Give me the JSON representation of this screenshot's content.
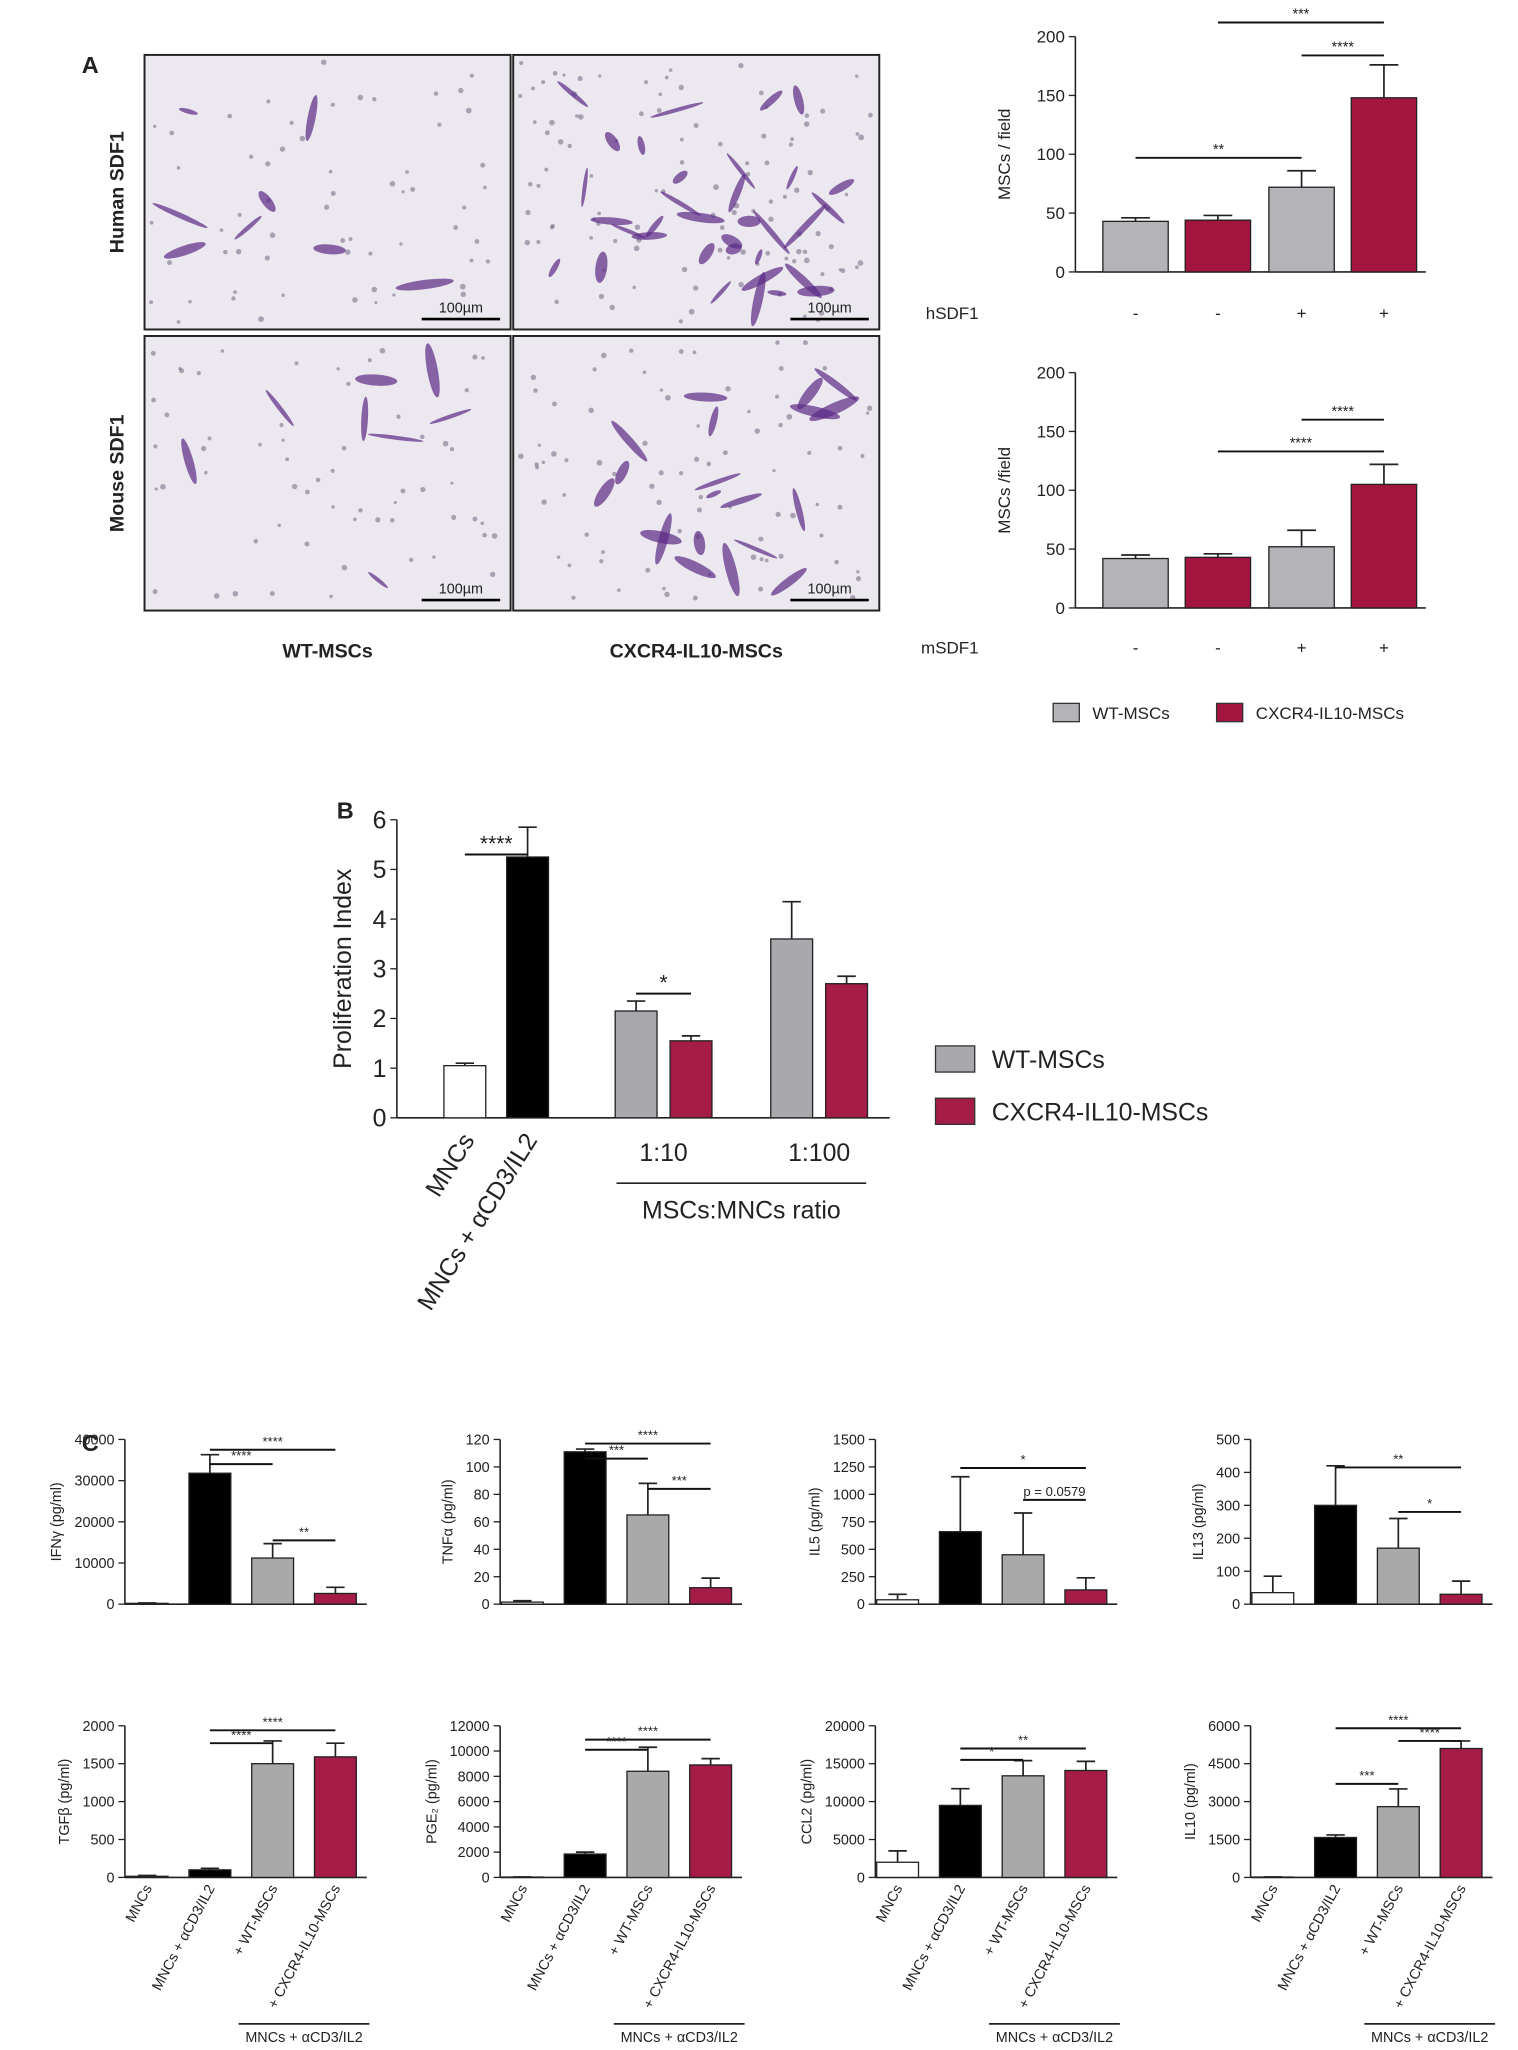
{
  "panels": [
    "A",
    "B",
    "C"
  ],
  "micrographs": {
    "rows": [
      "Human SDF1",
      "Mouse SDF1"
    ],
    "columns": [
      "WT-MSCs",
      "CXCR4-IL10-MSCs"
    ],
    "scale_bar": "100µm"
  },
  "chart_data": [
    {
      "type": "bar",
      "ylabel": "MSCs / field",
      "x_row_label": "hSDF1",
      "categories": [
        "-",
        "-",
        "+",
        "+"
      ],
      "series": [
        {
          "color": "#b4b4b8",
          "values": [
            43,
            null,
            72,
            null
          ],
          "errors": [
            3,
            null,
            14,
            null
          ]
        },
        {
          "color": "#a3153f",
          "values": [
            null,
            44,
            null,
            148
          ],
          "errors": [
            null,
            4,
            null,
            28
          ]
        }
      ],
      "ylim": [
        0,
        200
      ],
      "yticks": [
        0,
        50,
        100,
        150,
        200
      ],
      "annotations": [
        {
          "from": 1,
          "to": 3,
          "y": 212,
          "label": "***"
        },
        {
          "from": 2,
          "to": 3,
          "y": 184,
          "label": "****"
        },
        {
          "from": 0,
          "to": 2,
          "y": 97,
          "label": "**"
        }
      ]
    },
    {
      "type": "bar",
      "ylabel": "MSCs /field",
      "x_row_label": "mSDF1",
      "categories": [
        "-",
        "-",
        "+",
        "+"
      ],
      "series": [
        {
          "name": "WT-MSCs",
          "color": "#b4b4b8",
          "values": [
            42,
            null,
            52,
            null
          ],
          "errors": [
            3,
            null,
            14,
            null
          ]
        },
        {
          "name": "CXCR4-IL10-MSCs",
          "color": "#a3153f",
          "values": [
            null,
            43,
            null,
            105
          ],
          "errors": [
            null,
            3,
            null,
            17
          ]
        }
      ],
      "ylim": [
        0,
        200
      ],
      "yticks": [
        0,
        50,
        100,
        150,
        200
      ],
      "legend": "bottom",
      "annotations": [
        {
          "from": 2,
          "to": 3,
          "y": 160,
          "label": "****"
        },
        {
          "from": 1,
          "to": 3,
          "y": 133,
          "label": "****"
        }
      ]
    },
    {
      "type": "bar",
      "ylabel": "Proliferation Index",
      "categories": [
        "MNCs",
        "MNCs + αCD3/IL2",
        "1:10",
        "1:100"
      ],
      "series": [
        {
          "color": "#ffffff",
          "values": [
            1.05,
            null,
            null,
            null
          ],
          "errors": [
            0.05,
            null,
            null,
            null
          ]
        },
        {
          "color": "#000000",
          "values": [
            null,
            5.25,
            null,
            null
          ],
          "errors": [
            null,
            0.6,
            null,
            null
          ]
        },
        {
          "name": "WT-MSCs",
          "color": "#a9a9ad",
          "values": [
            null,
            null,
            2.15,
            3.6
          ],
          "errors": [
            null,
            null,
            0.2,
            0.75
          ]
        },
        {
          "name": "CXCR4-IL10-MSCs",
          "color": "#a51c47",
          "values": [
            null,
            null,
            1.55,
            2.7
          ],
          "errors": [
            null,
            null,
            0.1,
            0.15
          ]
        }
      ],
      "ylim": [
        0,
        6
      ],
      "yticks": [
        0,
        1,
        2,
        3,
        4,
        5,
        6
      ],
      "legend": "right",
      "group_label": {
        "label": "MSCs:MNCs ratio",
        "from": 2,
        "to": 3
      },
      "annotations": [
        {
          "from": 0,
          "to": 1,
          "y": 5.3,
          "label": "****"
        },
        {
          "from": 2,
          "to": 2,
          "y": 2.5,
          "label": "*"
        }
      ]
    },
    {
      "type": "bar",
      "ylabel": "IFNγ (pg/ml)",
      "categories": [
        null,
        null,
        null,
        null
      ],
      "values": [
        200,
        31800,
        11200,
        2600
      ],
      "errors": [
        100,
        4500,
        3500,
        1500
      ],
      "colors": [
        "#ffffff",
        "#000000",
        "#a9a9a9",
        "#a51c47"
      ],
      "ylim": [
        0,
        40000
      ],
      "yticks": [
        0,
        10000,
        20000,
        30000,
        40000
      ],
      "annotations": [
        {
          "from": 1,
          "to": 3,
          "y": 37500,
          "label": "****"
        },
        {
          "from": 1,
          "to": 2,
          "y": 34000,
          "label": "****"
        },
        {
          "from": 2,
          "to": 3,
          "y": 15500,
          "label": "**"
        }
      ]
    },
    {
      "type": "bar",
      "ylabel": "TNFα (pg/ml)",
      "categories": [
        null,
        null,
        null,
        null
      ],
      "values": [
        1.5,
        111,
        65,
        12
      ],
      "errors": [
        1,
        2,
        23,
        7
      ],
      "colors": [
        "#ffffff",
        "#000000",
        "#a9a9a9",
        "#a51c47"
      ],
      "ylim": [
        0,
        120
      ],
      "yticks": [
        0,
        20,
        40,
        60,
        80,
        100,
        120
      ],
      "annotations": [
        {
          "from": 1,
          "to": 3,
          "y": 117,
          "label": "****"
        },
        {
          "from": 1,
          "to": 2,
          "y": 106,
          "label": "***"
        },
        {
          "from": 2,
          "to": 3,
          "y": 84,
          "label": "***"
        }
      ]
    },
    {
      "type": "bar",
      "ylabel": "IL5 (pg/ml)",
      "categories": [
        null,
        null,
        null,
        null
      ],
      "values": [
        40,
        660,
        450,
        130
      ],
      "errors": [
        50,
        500,
        380,
        110
      ],
      "colors": [
        "#ffffff",
        "#000000",
        "#a9a9a9",
        "#a51c47"
      ],
      "ylim": [
        0,
        1500
      ],
      "yticks": [
        0,
        250,
        500,
        750,
        1000,
        1250,
        1500
      ],
      "annotations": [
        {
          "from": 1,
          "to": 3,
          "y": 1240,
          "label": "*"
        },
        {
          "from": 2,
          "to": 3,
          "y": 950,
          "label": "p = 0.0579"
        }
      ]
    },
    {
      "type": "bar",
      "ylabel": "IL13 (pg/ml)",
      "categories": [
        null,
        null,
        null,
        null
      ],
      "values": [
        35,
        300,
        170,
        30
      ],
      "errors": [
        50,
        120,
        90,
        40
      ],
      "colors": [
        "#ffffff",
        "#000000",
        "#a9a9a9",
        "#a51c47"
      ],
      "ylim": [
        0,
        500
      ],
      "yticks": [
        0,
        100,
        200,
        300,
        400,
        500
      ],
      "annotations": [
        {
          "from": 1,
          "to": 3,
          "y": 415,
          "label": "**"
        },
        {
          "from": 2,
          "to": 3,
          "y": 280,
          "label": "*"
        }
      ]
    },
    {
      "type": "bar",
      "ylabel": "TGFβ (pg/ml)",
      "categories": [
        "MNCs",
        "MNCs + αCD3/IL2",
        "+ WT-MSCs",
        "+ CXCR4-IL10-MSCs"
      ],
      "values": [
        15,
        100,
        1500,
        1590
      ],
      "errors": [
        10,
        20,
        300,
        180
      ],
      "colors": [
        "#ffffff",
        "#000000",
        "#a9a9a9",
        "#a51c47"
      ],
      "ylim": [
        0,
        2000
      ],
      "yticks": [
        0,
        500,
        1000,
        1500,
        2000
      ],
      "group_label": {
        "label": "MNCs + αCD3/IL2",
        "from": 2,
        "to": 3
      },
      "annotations": [
        {
          "from": 1,
          "to": 3,
          "y": 1940,
          "label": "****"
        },
        {
          "from": 1,
          "to": 2,
          "y": 1770,
          "label": "****"
        }
      ]
    },
    {
      "type": "bar",
      "ylabel": "PGE₂ (pg/ml)",
      "categories": [
        "MNCs",
        "MNCs + αCD3/IL2",
        "+ WT-MSCs",
        "+ CXCR4-IL10-MSCs"
      ],
      "values": [
        30,
        1850,
        8400,
        8900
      ],
      "errors": [
        10,
        150,
        1900,
        500
      ],
      "colors": [
        "#ffffff",
        "#000000",
        "#a9a9a9",
        "#a51c47"
      ],
      "ylim": [
        0,
        12000
      ],
      "yticks": [
        0,
        2000,
        4000,
        6000,
        8000,
        10000,
        12000
      ],
      "group_label": {
        "label": "MNCs + αCD3/IL2",
        "from": 2,
        "to": 3
      },
      "annotations": [
        {
          "from": 1,
          "to": 3,
          "y": 10900,
          "label": "****"
        },
        {
          "from": 1,
          "to": 2,
          "y": 10100,
          "label": "****"
        }
      ]
    },
    {
      "type": "bar",
      "ylabel": "CCL2 (pg/ml)",
      "categories": [
        "MNCs",
        "MNCs + αCD3/IL2",
        "+ WT-MSCs",
        "+ CXCR4-IL10-MSCs"
      ],
      "values": [
        2000,
        9500,
        13400,
        14100
      ],
      "errors": [
        1500,
        2200,
        2000,
        1200
      ],
      "colors": [
        "#ffffff",
        "#000000",
        "#a9a9a9",
        "#a51c47"
      ],
      "ylim": [
        0,
        20000
      ],
      "yticks": [
        0,
        5000,
        10000,
        15000,
        20000
      ],
      "group_label": {
        "label": "MNCs + αCD3/IL2",
        "from": 2,
        "to": 3
      },
      "annotations": [
        {
          "from": 1,
          "to": 3,
          "y": 17000,
          "label": "**"
        },
        {
          "from": 1,
          "to": 2,
          "y": 15500,
          "label": "*"
        }
      ]
    },
    {
      "type": "bar",
      "ylabel": "IL10 (pg/ml)",
      "categories": [
        "MNCs",
        "MNCs + αCD3/IL2",
        "+ WT-MSCs",
        "+ CXCR4-IL10-MSCs"
      ],
      "values": [
        15,
        1580,
        2800,
        5100
      ],
      "errors": [
        5,
        100,
        700,
        300
      ],
      "colors": [
        "#ffffff",
        "#000000",
        "#a9a9a9",
        "#a51c47"
      ],
      "ylim": [
        0,
        6000
      ],
      "yticks": [
        0,
        1500,
        3000,
        4500,
        6000
      ],
      "group_label": {
        "label": "MNCs + αCD3/IL2",
        "from": 2,
        "to": 3
      },
      "annotations": [
        {
          "from": 1,
          "to": 3,
          "y": 5900,
          "label": "****"
        },
        {
          "from": 2,
          "to": 3,
          "y": 5400,
          "label": "****"
        },
        {
          "from": 1,
          "to": 2,
          "y": 3700,
          "label": "***"
        }
      ]
    }
  ]
}
